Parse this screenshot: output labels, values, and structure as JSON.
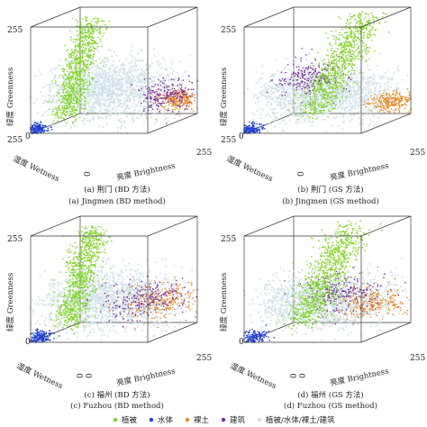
{
  "chart_data": [
    {
      "type": "scatter",
      "caption_cn": "(a) 荆门 (BD 方法)",
      "caption_en": "(a) Jingmen (BD method)",
      "xlabel": "湿度 Wetness",
      "ylabel": "绿度 Greenness",
      "zlabel": "亮度 Brightness",
      "y_ticks": [
        "255",
        "0"
      ],
      "x_ticks": [
        "255"
      ],
      "z_ticks": [
        "0",
        "255"
      ],
      "axis_range": [
        0,
        255
      ],
      "clusters": [
        {
          "class": "vegetation",
          "wetness": 150,
          "brightness": 60,
          "greenness": 200,
          "spread": [
            20,
            25,
            45
          ]
        },
        {
          "class": "mixed",
          "wetness": 120,
          "brightness": 120,
          "greenness": 80,
          "spread": [
            70,
            70,
            35
          ]
        },
        {
          "class": "water",
          "wetness": 245,
          "brightness": 10,
          "greenness": 8,
          "spread": [
            12,
            10,
            6
          ]
        },
        {
          "class": "bare_soil",
          "wetness": 40,
          "brightness": 230,
          "greenness": 40,
          "spread": [
            25,
            20,
            12
          ]
        },
        {
          "class": "building",
          "wetness": 60,
          "brightness": 215,
          "greenness": 55,
          "spread": [
            35,
            30,
            18
          ]
        }
      ]
    },
    {
      "type": "scatter",
      "caption_cn": "(b) 荆门 (GS 方法)",
      "caption_en": "(b) Jingmen (GS method)",
      "xlabel": "湿度 Wetness",
      "ylabel": "绿度 Greenness",
      "zlabel": "亮度 Brightness",
      "y_ticks": [
        "255",
        "0"
      ],
      "x_ticks": [
        "255"
      ],
      "z_ticks": [
        "0",
        "255"
      ],
      "axis_range": [
        0,
        255
      ],
      "clusters": [
        {
          "class": "vegetation",
          "wetness": 100,
          "brightness": 140,
          "greenness": 180,
          "spread": [
            25,
            35,
            45
          ]
        },
        {
          "class": "mixed",
          "wetness": 120,
          "brightness": 120,
          "greenness": 70,
          "spread": [
            70,
            70,
            30
          ]
        },
        {
          "class": "water",
          "wetness": 245,
          "brightness": 10,
          "greenness": 8,
          "spread": [
            12,
            10,
            6
          ]
        },
        {
          "class": "bare_soil",
          "wetness": 40,
          "brightness": 230,
          "greenness": 35,
          "spread": [
            25,
            20,
            12
          ]
        },
        {
          "class": "building",
          "wetness": 130,
          "brightness": 90,
          "greenness": 110,
          "spread": [
            40,
            30,
            20
          ]
        }
      ]
    },
    {
      "type": "scatter",
      "caption_cn": "(c) 福州 (BD 方法)",
      "caption_en": "(c) Fuzhou (BD method)",
      "xlabel": "湿度 Wetness",
      "ylabel": "绿度 Greenness",
      "zlabel": "亮度 Brightness",
      "y_ticks": [
        "255",
        "0"
      ],
      "x_ticks": [
        "0"
      ],
      "z_ticks": [
        "0",
        "255"
      ],
      "axis_range": [
        0,
        255
      ],
      "clusters": [
        {
          "class": "vegetation",
          "wetness": 140,
          "brightness": 60,
          "greenness": 190,
          "spread": [
            25,
            25,
            45
          ]
        },
        {
          "class": "mixed",
          "wetness": 120,
          "brightness": 120,
          "greenness": 80,
          "spread": [
            70,
            70,
            35
          ]
        },
        {
          "class": "water",
          "wetness": 240,
          "brightness": 15,
          "greenness": 10,
          "spread": [
            15,
            12,
            8
          ]
        },
        {
          "class": "bare_soil",
          "wetness": 50,
          "brightness": 200,
          "greenness": 60,
          "spread": [
            40,
            35,
            20
          ]
        },
        {
          "class": "building",
          "wetness": 80,
          "brightness": 170,
          "greenness": 70,
          "spread": [
            50,
            40,
            20
          ]
        }
      ]
    },
    {
      "type": "scatter",
      "caption_cn": "(d) 福州 (GS 方法)",
      "caption_en": "(d) Fuzhou (GS method)",
      "xlabel": "湿度 Wetness",
      "ylabel": "绿度 Greenness",
      "zlabel": "亮度 Brightness",
      "y_ticks": [
        "255",
        "0"
      ],
      "x_ticks": [
        "0"
      ],
      "z_ticks": [
        "0",
        "255"
      ],
      "axis_range": [
        0,
        255
      ],
      "clusters": [
        {
          "class": "vegetation",
          "wetness": 110,
          "brightness": 120,
          "greenness": 170,
          "spread": [
            25,
            35,
            45
          ]
        },
        {
          "class": "mixed",
          "wetness": 120,
          "brightness": 120,
          "greenness": 75,
          "spread": [
            70,
            70,
            30
          ]
        },
        {
          "class": "water",
          "wetness": 240,
          "brightness": 15,
          "greenness": 10,
          "spread": [
            15,
            12,
            8
          ]
        },
        {
          "class": "bare_soil",
          "wetness": 60,
          "brightness": 190,
          "greenness": 60,
          "spread": [
            40,
            35,
            20
          ]
        },
        {
          "class": "building",
          "wetness": 110,
          "brightness": 150,
          "greenness": 90,
          "spread": [
            45,
            40,
            22
          ]
        }
      ]
    }
  ],
  "legend": [
    {
      "key": "vegetation",
      "label": "植被",
      "color": "#7ed321"
    },
    {
      "key": "water",
      "label": "水体",
      "color": "#1f3fd1"
    },
    {
      "key": "bare_soil",
      "label": "裸土",
      "color": "#e8892a"
    },
    {
      "key": "building",
      "label": "建筑",
      "color": "#7a2f9c"
    },
    {
      "key": "mixed",
      "label": "植被/水体/裸土/建筑",
      "color": "#cfe0e8"
    }
  ]
}
